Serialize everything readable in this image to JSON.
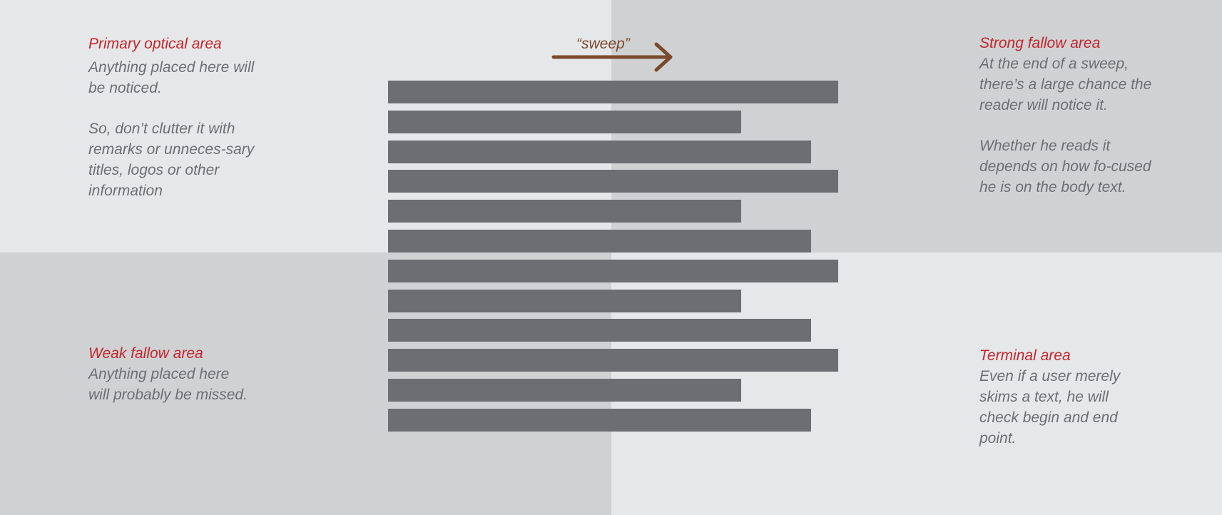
{
  "areas": {
    "primary": {
      "title": "Primary optical area",
      "body": [
        "Anything placed here will be noticed.",
        "So, don’t clutter it with remarks or unneces-sary titles, logos or other information"
      ]
    },
    "strong": {
      "title": "Strong fallow area",
      "body": [
        "At the end of a sweep, there’s a large chance the reader will notice it.",
        "Whether he reads it depends on how fo-cused he is on the body text."
      ]
    },
    "weak": {
      "title": "Weak fallow area",
      "body": [
        "Anything placed here will probably be missed."
      ]
    },
    "terminal": {
      "title": "Terminal area",
      "body": [
        "Even if a user merely skims a text, he will check begin and end point."
      ]
    }
  },
  "sweep_label": "“sweep”",
  "text_lines": [
    1.0,
    0.785,
    0.94,
    1.0,
    0.785,
    0.94,
    1.0,
    0.785,
    0.94,
    1.0,
    0.785,
    0.94
  ],
  "colors": {
    "light_quadrant": "#e6e7e9",
    "dark_quadrant": "#d0d1d3",
    "title_red": "#c1272d",
    "body_gray": "#6d6e71",
    "bar_gray": "#6d6e71",
    "arrow_brown": "#7a4a2c"
  }
}
